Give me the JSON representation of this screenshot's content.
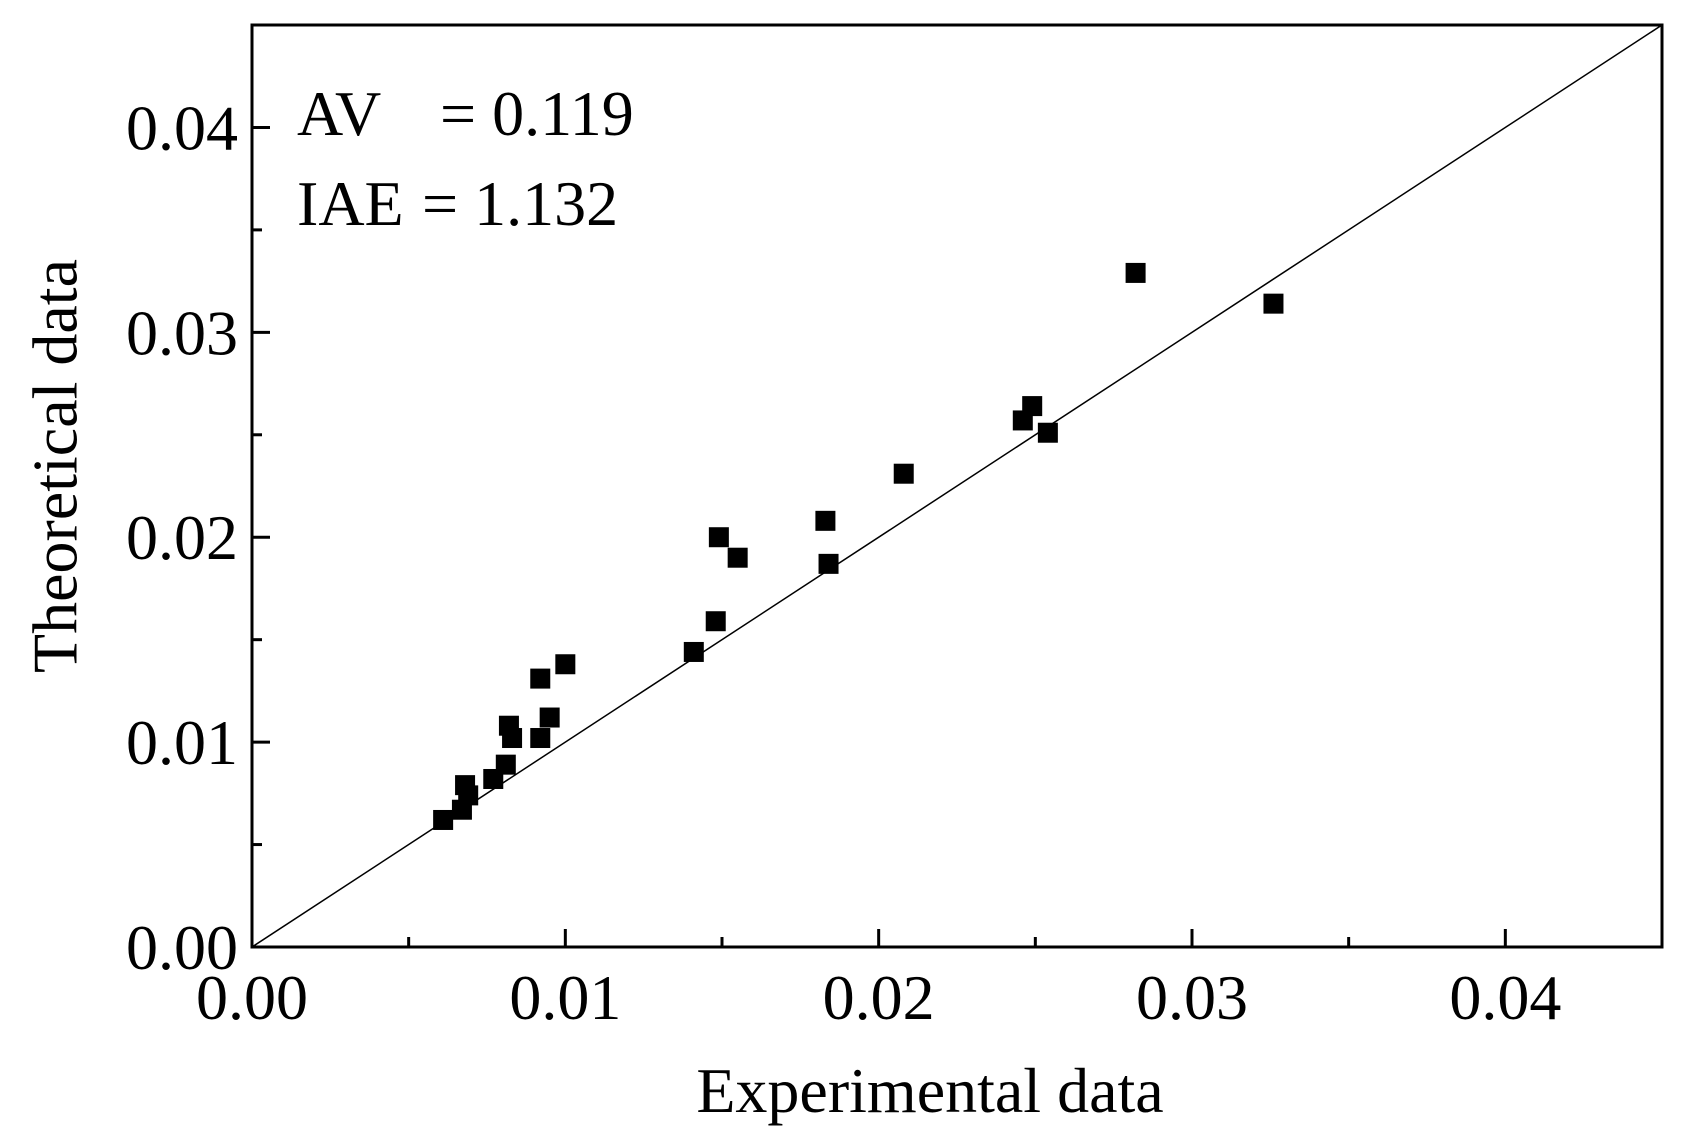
{
  "chart_data": {
    "type": "scatter",
    "title": "",
    "xlabel": "Experimental data",
    "ylabel": "Theoretical data",
    "xlim": [
      0.0,
      0.045
    ],
    "ylim": [
      0.0,
      0.045
    ],
    "grid": false,
    "x_major_ticks": [
      0.0,
      0.01,
      0.02,
      0.03,
      0.04
    ],
    "x_tick_labels": [
      "0.00",
      "0.01",
      "0.02",
      "0.03",
      "0.04"
    ],
    "x_minor_ticks": [
      0.005,
      0.015,
      0.025,
      0.035
    ],
    "y_major_ticks": [
      0.0,
      0.01,
      0.02,
      0.03,
      0.04
    ],
    "y_tick_labels": [
      "0.00",
      "0.01",
      "0.02",
      "0.03",
      "0.04"
    ],
    "y_minor_ticks": [
      0.005,
      0.015,
      0.025,
      0.035
    ],
    "reference_line": {
      "name": "y = x",
      "x": [
        0.0,
        0.045
      ],
      "y": [
        0.0,
        0.045
      ]
    },
    "annotations": [
      {
        "label": "AV",
        "text": "= 0.119"
      },
      {
        "label": "IAE",
        "text": "= 1.132"
      }
    ],
    "series": [
      {
        "name": "data",
        "marker": "square",
        "color": "#000000",
        "x": [
          0.0061,
          0.0067,
          0.0068,
          0.0069,
          0.0077,
          0.0081,
          0.0082,
          0.0083,
          0.0092,
          0.0092,
          0.0095,
          0.01,
          0.0141,
          0.0148,
          0.0149,
          0.0155,
          0.0183,
          0.0184,
          0.0208,
          0.0246,
          0.0249,
          0.0254,
          0.0282,
          0.0326
        ],
        "y": [
          0.0062,
          0.0067,
          0.0079,
          0.0074,
          0.0082,
          0.0089,
          0.0108,
          0.0102,
          0.0131,
          0.0102,
          0.0112,
          0.0138,
          0.0144,
          0.0159,
          0.02,
          0.019,
          0.0208,
          0.0187,
          0.0231,
          0.0257,
          0.0264,
          0.0251,
          0.0329,
          0.0314
        ]
      }
    ]
  },
  "colors": {
    "axis": "#000000",
    "marker": "#000000",
    "background": "#ffffff"
  }
}
